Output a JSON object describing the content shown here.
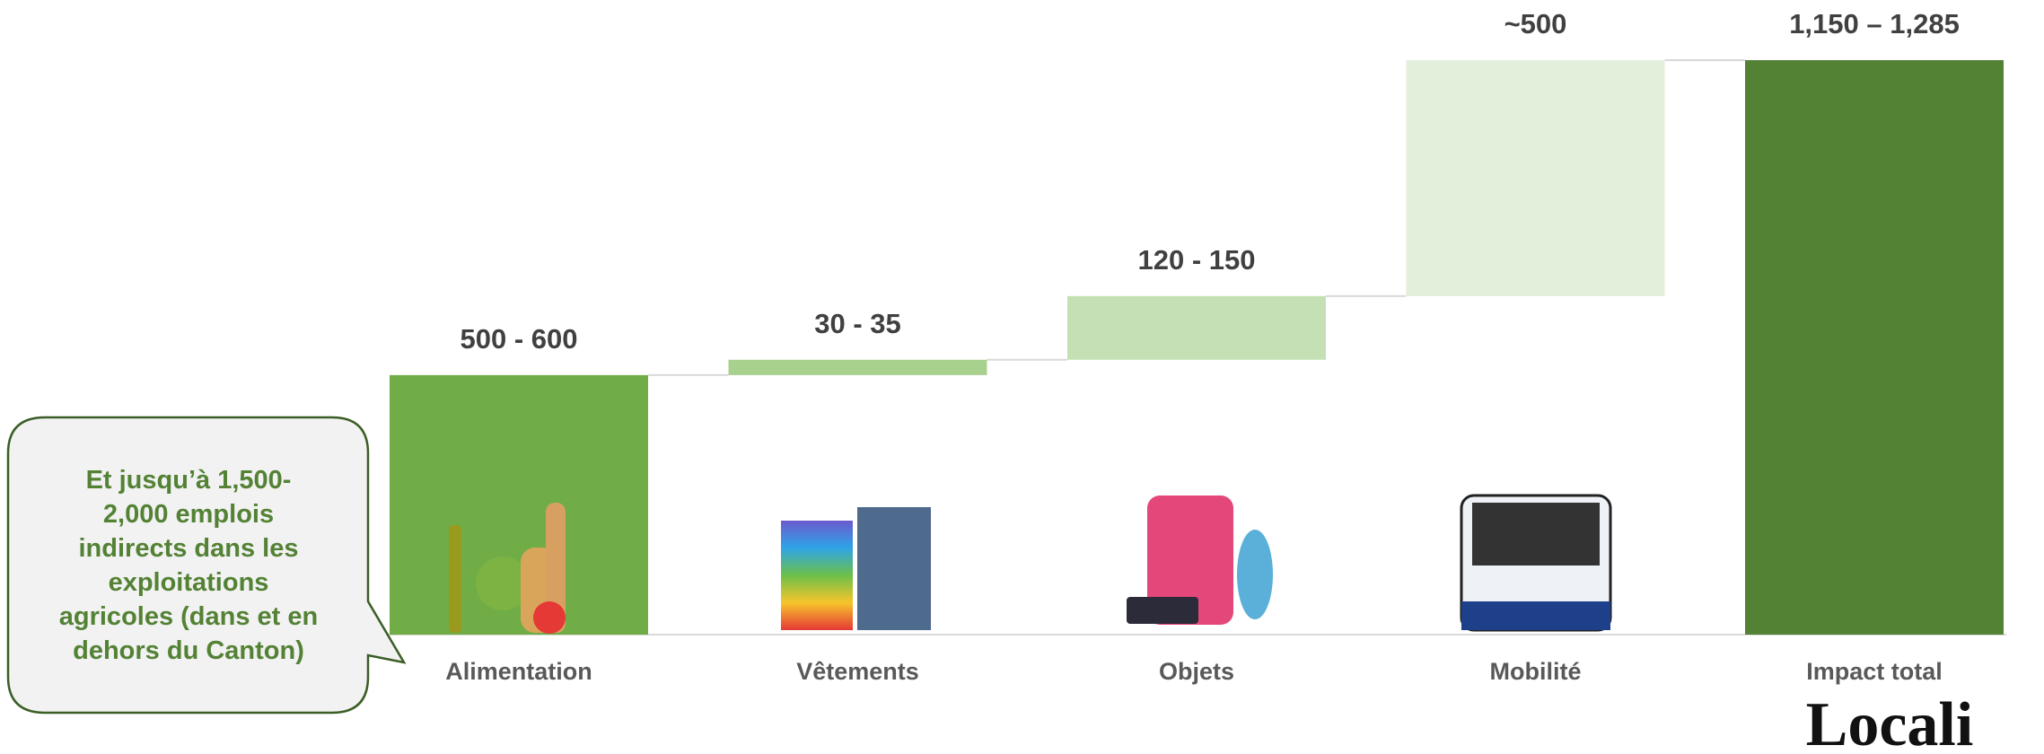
{
  "chart_data": {
    "type": "waterfall",
    "categories": [
      "Alimentation",
      "Vêtements",
      "Objets",
      "Mobilité",
      "Impact total"
    ],
    "values": [
      550,
      32.5,
      135,
      500,
      1217.5
    ],
    "value_labels": [
      "500 - 600",
      "30 - 35",
      "120 - 150",
      "~500",
      "1,150 – 1,285"
    ],
    "is_total": [
      false,
      false,
      false,
      false,
      true
    ],
    "colors": [
      "#70ad47",
      "#a9d18e",
      "#c5e0b4",
      "#e2efda",
      "#548235"
    ],
    "connectors": true
  },
  "callout": {
    "lines": [
      "Et jusqu’à 1,500-",
      "2,000 emplois",
      "indirects dans les",
      "exploitations",
      "agricoles (dans et en",
      "dehors du Canton)"
    ]
  },
  "logo": "Locali"
}
